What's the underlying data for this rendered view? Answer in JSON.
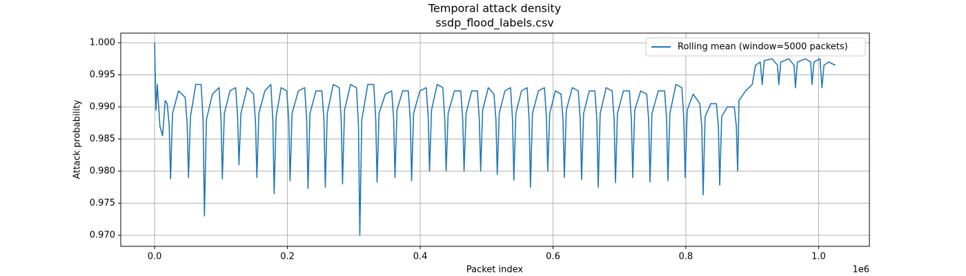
{
  "chart_data": {
    "type": "line",
    "title": "Temporal attack density",
    "subtitle": "ssdp_flood_labels.csv",
    "x_label": "Packet index",
    "y_label": "Attack probability",
    "x_offset_label": "1e6",
    "grid": true,
    "legend_position": "upper right",
    "xlim": [
      -51000,
      1076400
    ],
    "ylim": [
      0.96828,
      1.0015
    ],
    "xticks": [
      {
        "value": 0,
        "label": "0.0"
      },
      {
        "value": 200000,
        "label": "0.2"
      },
      {
        "value": 400000,
        "label": "0.4"
      },
      {
        "value": 600000,
        "label": "0.6"
      },
      {
        "value": 800000,
        "label": "0.8"
      },
      {
        "value": 1000000,
        "label": "1.0"
      }
    ],
    "yticks": [
      {
        "value": 0.97,
        "label": "0.970"
      },
      0.975,
      {
        "value": 0.98,
        "label": "0.980"
      },
      0.985,
      {
        "value": 0.99,
        "label": "0.990"
      },
      0.995,
      {
        "value": 1.0,
        "label": "1.000"
      }
    ],
    "x": [
      0,
      2000,
      4000,
      8000,
      12000,
      16000,
      19000,
      22000,
      24000,
      27000,
      36000,
      46000,
      49000,
      51000,
      54000,
      62000,
      70000,
      73000,
      75000,
      78000,
      87000,
      97000,
      100000,
      102000,
      105000,
      113500,
      122000,
      125000,
      127000,
      130000,
      139500,
      149000,
      152000,
      154000,
      157000,
      166000,
      175000,
      178000,
      180000,
      183000,
      190500,
      199000,
      202000,
      204000,
      207000,
      216500,
      226000,
      229000,
      231000,
      234000,
      243000,
      252000,
      255000,
      257000,
      260000,
      269000,
      278000,
      281000,
      283000,
      286000,
      295000,
      304000,
      307000,
      309000,
      312000,
      321000,
      330000,
      333000,
      335000,
      338000,
      347500,
      357000,
      360000,
      362000,
      365000,
      373500,
      382000,
      385000,
      387000,
      390000,
      399500,
      409000,
      412000,
      414000,
      417000,
      425500,
      434000,
      437000,
      439000,
      442000,
      451500,
      461000,
      464000,
      466000,
      469000,
      477500,
      486000,
      489000,
      491000,
      494000,
      502500,
      511000,
      514000,
      516000,
      519000,
      527500,
      536000,
      539000,
      541000,
      544000,
      552500,
      561000,
      564000,
      566000,
      569000,
      578000,
      587000,
      590000,
      592000,
      595000,
      603500,
      612000,
      615000,
      617000,
      620000,
      629000,
      638000,
      641000,
      643000,
      646000,
      654500,
      663000,
      666000,
      668000,
      671000,
      680000,
      689000,
      692000,
      694000,
      697000,
      706000,
      715000,
      718000,
      720000,
      723000,
      732000,
      741000,
      744000,
      746000,
      749000,
      758500,
      768000,
      771000,
      773000,
      776000,
      785000,
      794000,
      797000,
      799000,
      802000,
      811000,
      821000,
      824000,
      826000,
      829000,
      837500,
      846000,
      849000,
      851000,
      854000,
      862500,
      873000,
      876000,
      878000,
      880000,
      890000,
      900000,
      905000,
      912000,
      915000,
      918000,
      930000,
      938000,
      940000,
      943000,
      955000,
      963000,
      965000,
      968000,
      980000,
      988000,
      990000,
      993000,
      1002000,
      1005000,
      1008000,
      1015000,
      1025000
    ],
    "series": [
      {
        "name": "Rolling mean (window=5000 packets)",
        "color": "#1f77b4",
        "values": [
          1.0,
          0.9895,
          0.9935,
          0.987,
          0.9855,
          0.991,
          0.9905,
          0.987,
          0.9788,
          0.989,
          0.9925,
          0.9915,
          0.9875,
          0.979,
          0.9885,
          0.9935,
          0.9935,
          0.988,
          0.973,
          0.988,
          0.992,
          0.993,
          0.988,
          0.9788,
          0.989,
          0.9925,
          0.993,
          0.9885,
          0.981,
          0.989,
          0.993,
          0.992,
          0.9875,
          0.979,
          0.989,
          0.9925,
          0.9935,
          0.988,
          0.9765,
          0.9885,
          0.993,
          0.9925,
          0.988,
          0.9785,
          0.989,
          0.9925,
          0.993,
          0.988,
          0.9773,
          0.989,
          0.9925,
          0.9925,
          0.988,
          0.9775,
          0.989,
          0.9935,
          0.993,
          0.988,
          0.978,
          0.9895,
          0.9935,
          0.993,
          0.987,
          0.97,
          0.988,
          0.9935,
          0.9935,
          0.988,
          0.9783,
          0.989,
          0.992,
          0.9925,
          0.988,
          0.979,
          0.9895,
          0.9925,
          0.9925,
          0.988,
          0.9785,
          0.989,
          0.9925,
          0.993,
          0.9885,
          0.98,
          0.9895,
          0.9935,
          0.993,
          0.988,
          0.98,
          0.989,
          0.9925,
          0.9925,
          0.988,
          0.98,
          0.989,
          0.9925,
          0.9925,
          0.988,
          0.98,
          0.9895,
          0.993,
          0.992,
          0.988,
          0.9795,
          0.989,
          0.9925,
          0.993,
          0.988,
          0.9786,
          0.989,
          0.9925,
          0.993,
          0.988,
          0.9775,
          0.989,
          0.9925,
          0.993,
          0.9885,
          0.98,
          0.989,
          0.9925,
          0.992,
          0.988,
          0.979,
          0.9895,
          0.993,
          0.9925,
          0.988,
          0.9787,
          0.989,
          0.9925,
          0.9925,
          0.988,
          0.9775,
          0.989,
          0.993,
          0.9925,
          0.988,
          0.9782,
          0.989,
          0.9925,
          0.9925,
          0.988,
          0.979,
          0.9895,
          0.9925,
          0.992,
          0.988,
          0.9783,
          0.989,
          0.9925,
          0.9925,
          0.988,
          0.9785,
          0.989,
          0.9935,
          0.993,
          0.988,
          0.979,
          0.9895,
          0.992,
          0.9905,
          0.987,
          0.9763,
          0.9885,
          0.9905,
          0.9905,
          0.987,
          0.9778,
          0.9885,
          0.99,
          0.99,
          0.987,
          0.98,
          0.991,
          0.9925,
          0.9935,
          0.9965,
          0.997,
          0.9935,
          0.9972,
          0.9975,
          0.9965,
          0.9935,
          0.997,
          0.9975,
          0.9965,
          0.993,
          0.997,
          0.9975,
          0.997,
          0.9935,
          0.997,
          0.9975,
          0.993,
          0.9965,
          0.997,
          0.9965
        ]
      }
    ]
  }
}
